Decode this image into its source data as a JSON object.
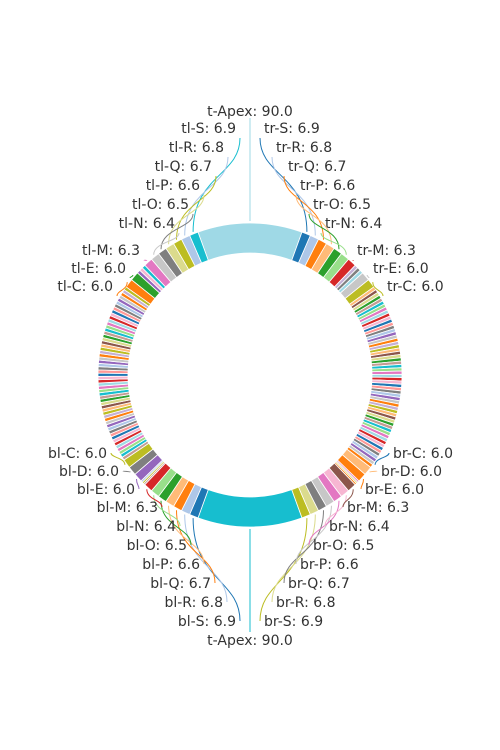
{
  "chart_data": {
    "type": "pie",
    "variant": "donut",
    "labeled_slices": [
      {
        "label": "t-Apex",
        "value": 90.0,
        "color": "#9fd9e6",
        "anchor": "top-apex",
        "display": "t-Apex: 90.0"
      },
      {
        "label": "tl-S",
        "value": 6.9,
        "color": "#17becf",
        "anchor": "top-left",
        "display": "tl-S: 6.9"
      },
      {
        "label": "tl-R",
        "value": 6.8,
        "color": "#aec7e8",
        "anchor": "top-left",
        "display": "tl-R: 6.8"
      },
      {
        "label": "tl-Q",
        "value": 6.7,
        "color": "#bcbd22",
        "anchor": "top-left",
        "display": "tl-Q: 6.7"
      },
      {
        "label": "tl-P",
        "value": 6.6,
        "color": "#dbdb8d",
        "anchor": "top-left",
        "display": "tl-P: 6.6"
      },
      {
        "label": "tl-O",
        "value": 6.5,
        "color": "#7f7f7f",
        "anchor": "top-left",
        "display": "tl-O: 6.5"
      },
      {
        "label": "tl-N",
        "value": 6.4,
        "color": "#c7c7c7",
        "anchor": "top-left",
        "display": "tl-N: 6.4"
      },
      {
        "label": "tl-M",
        "value": 6.3,
        "color": "#e377c2",
        "anchor": "top-left",
        "display": "tl-M: 6.3"
      },
      {
        "label": "tl-E",
        "value": 6.0,
        "color": "#2ca02c",
        "anchor": "top-left",
        "display": "tl-E: 6.0"
      },
      {
        "label": "tl-C",
        "value": 6.0,
        "color": "#ff7f0e",
        "anchor": "top-left",
        "display": "tl-C: 6.0"
      },
      {
        "label": "tr-S",
        "value": 6.9,
        "color": "#1f77b4",
        "anchor": "top-right",
        "display": "tr-S: 6.9"
      },
      {
        "label": "tr-R",
        "value": 6.8,
        "color": "#aec7e8",
        "anchor": "top-right",
        "display": "tr-R: 6.8"
      },
      {
        "label": "tr-Q",
        "value": 6.7,
        "color": "#ff7f0e",
        "anchor": "top-right",
        "display": "tr-Q: 6.7"
      },
      {
        "label": "tr-P",
        "value": 6.6,
        "color": "#ffbb78",
        "anchor": "top-right",
        "display": "tr-P: 6.6"
      },
      {
        "label": "tr-O",
        "value": 6.5,
        "color": "#2ca02c",
        "anchor": "top-right",
        "display": "tr-O: 6.5"
      },
      {
        "label": "tr-N",
        "value": 6.4,
        "color": "#98df8a",
        "anchor": "top-right",
        "display": "tr-N: 6.4"
      },
      {
        "label": "tr-M",
        "value": 6.3,
        "color": "#d62728",
        "anchor": "top-right",
        "display": "tr-M: 6.3"
      },
      {
        "label": "tr-E",
        "value": 6.0,
        "color": "#c7c7c7",
        "anchor": "top-right",
        "display": "tr-E: 6.0"
      },
      {
        "label": "tr-C",
        "value": 6.0,
        "color": "#bcbd22",
        "anchor": "top-right",
        "display": "tr-C: 6.0"
      },
      {
        "label": "t-Apex",
        "value": 90.0,
        "color": "#17becf",
        "anchor": "bottom-apex",
        "display": "t-Apex: 90.0"
      },
      {
        "label": "bl-S",
        "value": 6.9,
        "color": "#1f77b4",
        "anchor": "bottom-left",
        "display": "bl-S: 6.9"
      },
      {
        "label": "bl-R",
        "value": 6.8,
        "color": "#aec7e8",
        "anchor": "bottom-left",
        "display": "bl-R: 6.8"
      },
      {
        "label": "bl-Q",
        "value": 6.7,
        "color": "#ff7f0e",
        "anchor": "bottom-left",
        "display": "bl-Q: 6.7"
      },
      {
        "label": "bl-P",
        "value": 6.6,
        "color": "#ffbb78",
        "anchor": "bottom-left",
        "display": "bl-P: 6.6"
      },
      {
        "label": "bl-O",
        "value": 6.5,
        "color": "#2ca02c",
        "anchor": "bottom-left",
        "display": "bl-O: 6.5"
      },
      {
        "label": "bl-N",
        "value": 6.4,
        "color": "#98df8a",
        "anchor": "bottom-left",
        "display": "bl-N: 6.4"
      },
      {
        "label": "bl-M",
        "value": 6.3,
        "color": "#d62728",
        "anchor": "bottom-left",
        "display": "bl-M: 6.3"
      },
      {
        "label": "bl-E",
        "value": 6.0,
        "color": "#9467bd",
        "anchor": "bottom-left",
        "display": "bl-E: 6.0"
      },
      {
        "label": "bl-D",
        "value": 6.0,
        "color": "#7f7f7f",
        "anchor": "bottom-left",
        "display": "bl-D: 6.0"
      },
      {
        "label": "bl-C",
        "value": 6.0,
        "color": "#bcbd22",
        "anchor": "bottom-left",
        "display": "bl-C: 6.0"
      },
      {
        "label": "br-S",
        "value": 6.9,
        "color": "#bcbd22",
        "anchor": "bottom-right",
        "display": "br-S: 6.9"
      },
      {
        "label": "br-R",
        "value": 6.8,
        "color": "#dbdb8d",
        "anchor": "bottom-right",
        "display": "br-R: 6.8"
      },
      {
        "label": "br-Q",
        "value": 6.7,
        "color": "#7f7f7f",
        "anchor": "bottom-right",
        "display": "br-Q: 6.7"
      },
      {
        "label": "br-P",
        "value": 6.6,
        "color": "#c7c7c7",
        "anchor": "bottom-right",
        "display": "br-P: 6.6"
      },
      {
        "label": "br-O",
        "value": 6.5,
        "color": "#e377c2",
        "anchor": "bottom-right",
        "display": "br-O: 6.5"
      },
      {
        "label": "br-N",
        "value": 6.4,
        "color": "#f7b6d2",
        "anchor": "bottom-right",
        "display": "br-N: 6.4"
      },
      {
        "label": "br-M",
        "value": 6.3,
        "color": "#8c564b",
        "anchor": "bottom-right",
        "display": "br-M: 6.3"
      },
      {
        "label": "br-E",
        "value": 6.0,
        "color": "#ff7f0e",
        "anchor": "bottom-right",
        "display": "br-E: 6.0"
      },
      {
        "label": "br-D",
        "value": 6.0,
        "color": "#ffbb78",
        "anchor": "bottom-right",
        "display": "br-D: 6.0"
      },
      {
        "label": "br-C",
        "value": 6.0,
        "color": "#1f77b4",
        "anchor": "bottom-right",
        "display": "br-C: 6.0"
      }
    ],
    "unlabeled_slices_note": "Ring contains many additional thin unlabeled slices between the labeled groups",
    "palette": [
      "#1f77b4",
      "#aec7e8",
      "#ff7f0e",
      "#ffbb78",
      "#2ca02c",
      "#98df8a",
      "#d62728",
      "#ff9896",
      "#9467bd",
      "#c5b0d5",
      "#8c564b",
      "#c49c94",
      "#e377c2",
      "#f7b6d2",
      "#7f7f7f",
      "#c7c7c7",
      "#bcbd22",
      "#dbdb8d",
      "#17becf",
      "#9edae5"
    ],
    "legend": "none",
    "title": ""
  }
}
